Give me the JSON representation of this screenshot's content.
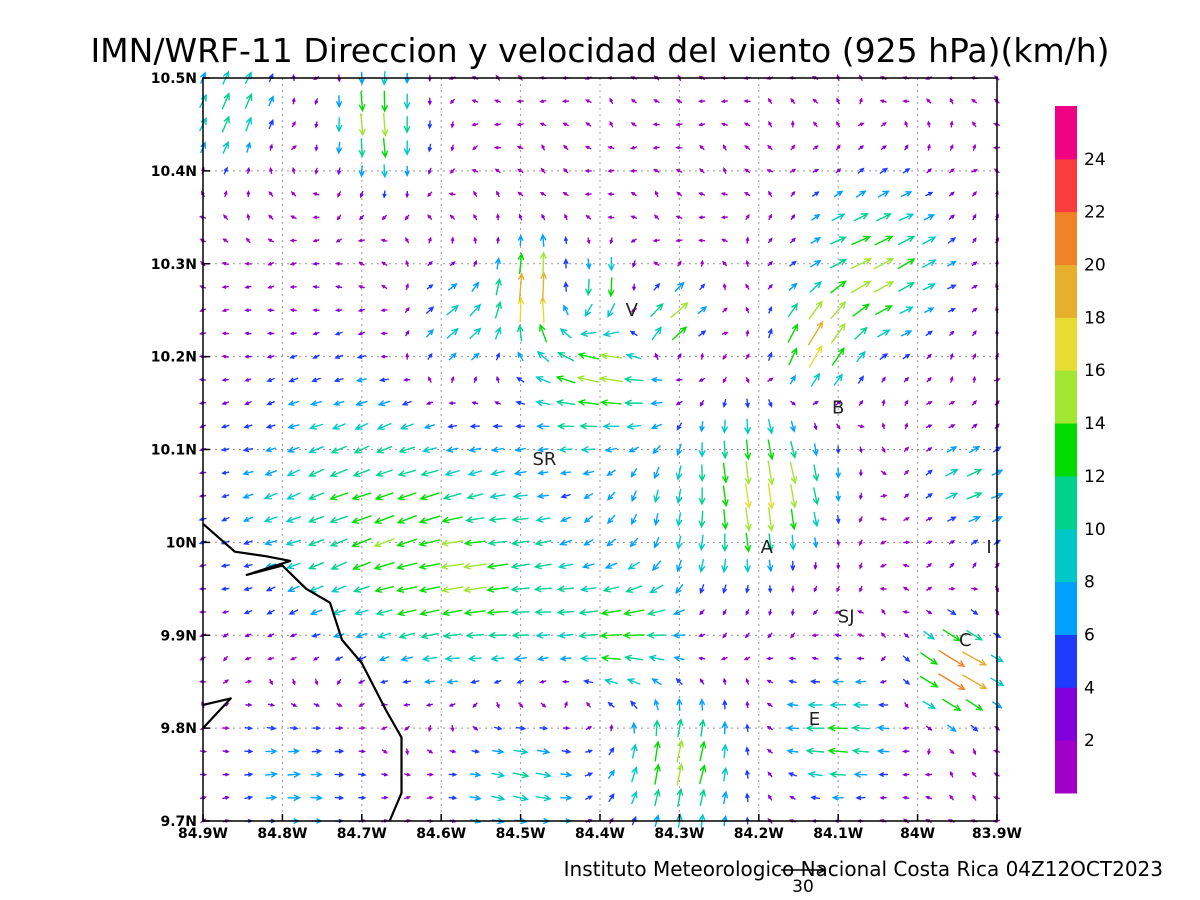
{
  "chart_data": {
    "type": "vector-field",
    "title": "IMN/WRF-11 Direccion y velocidad del viento (925 hPa)(km/h)",
    "credit": "Instituto Meteorologico Nacional Costa Rica 04Z12OCT2023",
    "reference_vector": {
      "magnitude": 30,
      "label": "30"
    },
    "x_axis": {
      "range": [
        -84.9,
        -83.9
      ],
      "ticks": [
        {
          "value": -84.9,
          "label": "84.9W"
        },
        {
          "value": -84.8,
          "label": "84.8W"
        },
        {
          "value": -84.7,
          "label": "84.7W"
        },
        {
          "value": -84.6,
          "label": "84.6W"
        },
        {
          "value": -84.5,
          "label": "84.5W"
        },
        {
          "value": -84.4,
          "label": "84.4W"
        },
        {
          "value": -84.3,
          "label": "84.3W"
        },
        {
          "value": -84.2,
          "label": "84.2W"
        },
        {
          "value": -84.1,
          "label": "84.1W"
        },
        {
          "value": -84.0,
          "label": "84W"
        },
        {
          "value": -83.9,
          "label": "83.9W"
        }
      ]
    },
    "y_axis": {
      "range": [
        9.7,
        10.5
      ],
      "ticks": [
        {
          "value": 9.7,
          "label": "9.7N"
        },
        {
          "value": 9.8,
          "label": "9.8N"
        },
        {
          "value": 9.9,
          "label": "9.9N"
        },
        {
          "value": 10.0,
          "label": "10N"
        },
        {
          "value": 10.1,
          "label": "10.1N"
        },
        {
          "value": 10.2,
          "label": "10.2N"
        },
        {
          "value": 10.3,
          "label": "10.3N"
        },
        {
          "value": 10.4,
          "label": "10.4N"
        },
        {
          "value": 10.5,
          "label": "10.5N"
        }
      ]
    },
    "grid": true,
    "colorbar": {
      "placement": "right",
      "bins": [
        {
          "min": 0,
          "max": 2,
          "color": "#a000c8"
        },
        {
          "min": 2,
          "max": 4,
          "color": "#8200dc"
        },
        {
          "min": 4,
          "max": 6,
          "color": "#1e3cff"
        },
        {
          "min": 6,
          "max": 8,
          "color": "#00a0ff"
        },
        {
          "min": 8,
          "max": 10,
          "color": "#00c8c8"
        },
        {
          "min": 10,
          "max": 12,
          "color": "#00d28c"
        },
        {
          "min": 12,
          "max": 14,
          "color": "#00dc00"
        },
        {
          "min": 14,
          "max": 16,
          "color": "#a0e632"
        },
        {
          "min": 16,
          "max": 18,
          "color": "#e6dc32"
        },
        {
          "min": 18,
          "max": 20,
          "color": "#e6af2d"
        },
        {
          "min": 20,
          "max": 22,
          "color": "#f08228"
        },
        {
          "min": 22,
          "max": 24,
          "color": "#fa3c3c"
        },
        {
          "min": 24,
          "max": 26,
          "color": "#f00082"
        }
      ],
      "labels": [
        "2",
        "4",
        "6",
        "8",
        "10",
        "12",
        "14",
        "16",
        "18",
        "20",
        "22",
        "24"
      ]
    },
    "place_labels": [
      {
        "text": "V",
        "lon": -84.36,
        "lat": 10.25
      },
      {
        "text": "B",
        "lon": -84.1,
        "lat": 10.145
      },
      {
        "text": "SR",
        "lon": -84.47,
        "lat": 10.09
      },
      {
        "text": "A",
        "lon": -84.19,
        "lat": 9.995
      },
      {
        "text": "I",
        "lon": -83.91,
        "lat": 9.995
      },
      {
        "text": "SJ",
        "lon": -84.09,
        "lat": 9.92
      },
      {
        "text": "C",
        "lon": -83.94,
        "lat": 9.895
      },
      {
        "text": "E",
        "lon": -84.13,
        "lat": 9.81
      }
    ],
    "coastline": [
      [
        -84.9,
        10.02
      ],
      [
        -84.86,
        9.99
      ],
      [
        -84.82,
        9.985
      ],
      [
        -84.79,
        9.98
      ],
      [
        -84.845,
        9.965
      ],
      [
        -84.8,
        9.975
      ],
      [
        -84.77,
        9.95
      ],
      [
        -84.74,
        9.935
      ],
      [
        -84.725,
        9.895
      ],
      [
        -84.7,
        9.87
      ],
      [
        -84.685,
        9.845
      ],
      [
        -84.67,
        9.82
      ],
      [
        -84.65,
        9.79
      ],
      [
        -84.65,
        9.73
      ],
      [
        -84.665,
        9.7
      ]
    ],
    "coastline_islet": [
      [
        -84.9,
        9.825
      ],
      [
        -84.865,
        9.832
      ],
      [
        -84.9,
        9.8
      ]
    ],
    "wind_regions": [
      {
        "lon": -84.87,
        "lat": 10.47,
        "u": 6,
        "v": 10,
        "sigma": 0.05
      },
      {
        "lon": -84.68,
        "lat": 10.45,
        "u": 2,
        "v": -16,
        "sigma": 0.045
      },
      {
        "lon": -84.47,
        "lat": 10.27,
        "u": 2,
        "v": 22,
        "sigma": 0.04
      },
      {
        "lon": -84.41,
        "lat": 10.27,
        "u": 4,
        "v": -20,
        "sigma": 0.035
      },
      {
        "lon": -84.31,
        "lat": 10.24,
        "u": 16,
        "v": 10,
        "sigma": 0.03
      },
      {
        "lon": -84.58,
        "lat": 10.23,
        "u": 10,
        "v": 6,
        "sigma": 0.05
      },
      {
        "lon": -84.05,
        "lat": 10.3,
        "u": 14,
        "v": 6,
        "sigma": 0.07
      },
      {
        "lon": -84.13,
        "lat": 10.21,
        "u": 6,
        "v": 14,
        "sigma": 0.04
      },
      {
        "lon": -84.4,
        "lat": 10.18,
        "u": -14,
        "v": 4,
        "sigma": 0.06
      },
      {
        "lon": -84.18,
        "lat": 10.06,
        "u": 4,
        "v": -14,
        "sigma": 0.06
      },
      {
        "lon": -84.3,
        "lat": 10.03,
        "u": 0,
        "v": -8,
        "sigma": 0.09
      },
      {
        "lon": -84.7,
        "lat": 10.03,
        "u": -10,
        "v": -5,
        "sigma": 0.12
      },
      {
        "lon": -84.53,
        "lat": 9.94,
        "u": -10,
        "v": 0,
        "sigma": 0.09
      },
      {
        "lon": -83.95,
        "lat": 9.86,
        "u": 20,
        "v": -12,
        "sigma": 0.04
      },
      {
        "lon": -83.93,
        "lat": 10.06,
        "u": 10,
        "v": 4,
        "sigma": 0.05
      },
      {
        "lon": -84.3,
        "lat": 9.76,
        "u": 4,
        "v": 14,
        "sigma": 0.06
      },
      {
        "lon": -84.5,
        "lat": 9.75,
        "u": 12,
        "v": -2,
        "sigma": 0.07
      },
      {
        "lon": -84.78,
        "lat": 9.75,
        "u": 9,
        "v": 0,
        "sigma": 0.08
      },
      {
        "lon": -84.1,
        "lat": 9.79,
        "u": -12,
        "v": 0,
        "sigma": 0.05
      },
      {
        "lon": -84.36,
        "lat": 9.9,
        "u": -12,
        "v": 1,
        "sigma": 0.05
      }
    ]
  }
}
